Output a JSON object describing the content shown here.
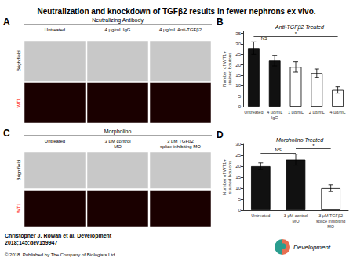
{
  "title": "Neutralization and knockdown of TGFβ2 results in fewer nephrons ex vivo.",
  "chart_data": [
    {
      "type": "bar",
      "panel_label": "B",
      "subtitle": "Anti-TGFβ2 Treated",
      "categories": [
        "Untreated",
        "4 μg/mL\nIgG",
        "1 μg/mL",
        "2 μg/mL",
        "4 μg/mL"
      ],
      "values": [
        28,
        22,
        19,
        16,
        8
      ],
      "errors": [
        3,
        2.5,
        2.5,
        2,
        1.5
      ],
      "colors": [
        "#111111",
        "#111111",
        "#ffffff",
        "#ffffff",
        "#ffffff"
      ],
      "ylabel": "Number of WT1+\nstained boutons",
      "ylim": [
        0,
        36
      ],
      "yticks": [
        0,
        5,
        10,
        15,
        20,
        25,
        30,
        35
      ],
      "grid": false,
      "annotations": [
        {
          "text": "NS",
          "x": [
            "Untreated",
            "4 μg/mL\nIgG"
          ],
          "y": 31
        },
        {
          "text": "*",
          "x": [
            "Untreated",
            "4 μg/mL"
          ],
          "y": 33.5
        }
      ]
    },
    {
      "type": "bar",
      "panel_label": "D",
      "subtitle": "Morpholino Treated",
      "categories": [
        "Untreated",
        "3 μM control\nMO",
        "3 μM TGFβ2\nsplice inhibiting\nMO"
      ],
      "values": [
        20,
        23,
        10
      ],
      "errors": [
        1.5,
        2.5,
        1.5
      ],
      "colors": [
        "#111111",
        "#111111",
        "#ffffff"
      ],
      "ylabel": "Number of WT1+\nstained boutons",
      "ylim": [
        0,
        30
      ],
      "yticks": [
        0,
        5,
        10,
        15,
        20,
        25,
        30
      ],
      "grid": false,
      "annotations": [
        {
          "text": "NS",
          "x": [
            "Untreated",
            "3 μM control\nMO"
          ],
          "y": 26
        },
        {
          "text": "*",
          "x": [
            "3 μM control\nMO",
            "3 μM TGFβ2\nsplice inhibiting\nMO"
          ],
          "y": 28
        }
      ]
    }
  ],
  "panels": [
    {
      "panel_label": "A",
      "section": "Neutralizing Antibody",
      "columns": [
        "Untreated",
        "4 μg/mL IgG",
        "4 μg/mL Anti-TGFβ2"
      ],
      "rows": [
        {
          "label": "Brightfield",
          "color": "#c8c8c8"
        },
        {
          "label": "WT1",
          "color": "#1a0000",
          "label_color": "red"
        }
      ]
    },
    {
      "panel_label": "C",
      "section": "Morpholino",
      "columns": [
        "Untreated",
        "3 μM control\nMO",
        "3 μM TGFβ2\nsplice inhibiting MO"
      ],
      "rows": [
        {
          "label": "Brightfield",
          "color": "#c8c8c8"
        },
        {
          "label": "WT1",
          "color": "#1a0000",
          "label_color": "red"
        }
      ]
    }
  ],
  "citation": "Christopher J. Rowan et al. Development\n2018;145:dev159947",
  "copyright": "© 2018. Published by The Company of Biologists Ltd",
  "logo": {
    "text": "Development",
    "colors": [
      "#2a9d8f",
      "#e76f51"
    ]
  }
}
